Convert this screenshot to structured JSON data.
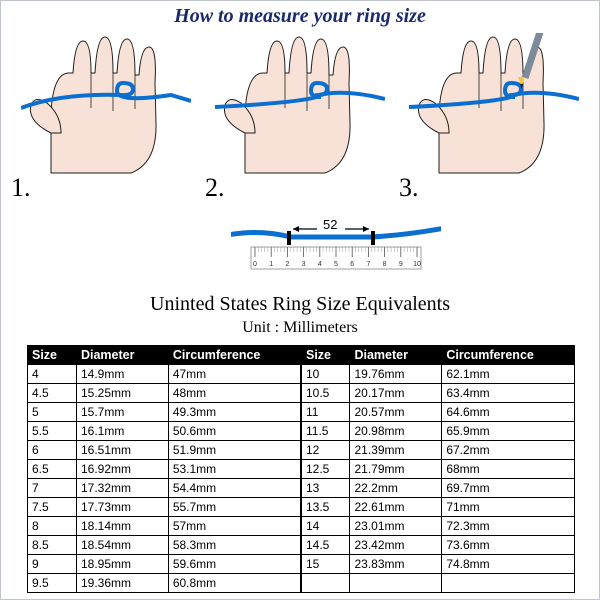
{
  "title": "How to measure your ring size",
  "steps": [
    "1.",
    "2.",
    "3."
  ],
  "ruler": {
    "value": "52",
    "ticks": [
      "0",
      "1",
      "2",
      "3",
      "4",
      "5",
      "6",
      "7",
      "8",
      "9",
      "10"
    ]
  },
  "colors": {
    "skin": "#f8e2d7",
    "skin_shadow": "#f0cfc1",
    "outline": "#1f1f1f",
    "string": "#0b6fd1",
    "title_color": "#1a2b6d",
    "pen_body": "#7d8a99",
    "pen_tip": "#f5c542",
    "table_header_bg": "#000000",
    "table_header_fg": "#ffffff"
  },
  "table": {
    "title": "Uninted States Ring Size Equivalents",
    "unit": "Unit : Millimeters",
    "headers": [
      "Size",
      "Diameter",
      "Circumference",
      "Size",
      "Diameter",
      "Circumference"
    ],
    "rows": [
      [
        "4",
        "14.9mm",
        "47mm",
        "10",
        "19.76mm",
        "62.1mm"
      ],
      [
        "4.5",
        "15.25mm",
        "48mm",
        "10.5",
        "20.17mm",
        "63.4mm"
      ],
      [
        "5",
        "15.7mm",
        "49.3mm",
        "11",
        "20.57mm",
        "64.6mm"
      ],
      [
        "5.5",
        "16.1mm",
        "50.6mm",
        "11.5",
        "20.98mm",
        "65.9mm"
      ],
      [
        "6",
        "16.51mm",
        "51.9mm",
        "12",
        "21.39mm",
        "67.2mm"
      ],
      [
        "6.5",
        "16.92mm",
        "53.1mm",
        "12.5",
        "21.79mm",
        "68mm"
      ],
      [
        "7",
        "17.32mm",
        "54.4mm",
        "13",
        "22.2mm",
        "69.7mm"
      ],
      [
        "7.5",
        "17.73mm",
        "55.7mm",
        "13.5",
        "22.61mm",
        "71mm"
      ],
      [
        "8",
        "18.14mm",
        "57mm",
        "14",
        "23.01mm",
        "72.3mm"
      ],
      [
        "8.5",
        "18.54mm",
        "58.3mm",
        "14.5",
        "23.42mm",
        "73.6mm"
      ],
      [
        "9",
        "18.95mm",
        "59.6mm",
        "15",
        "23.83mm",
        "74.8mm"
      ],
      [
        "9.5",
        "19.36mm",
        "60.8mm",
        "",
        "",
        ""
      ]
    ]
  }
}
